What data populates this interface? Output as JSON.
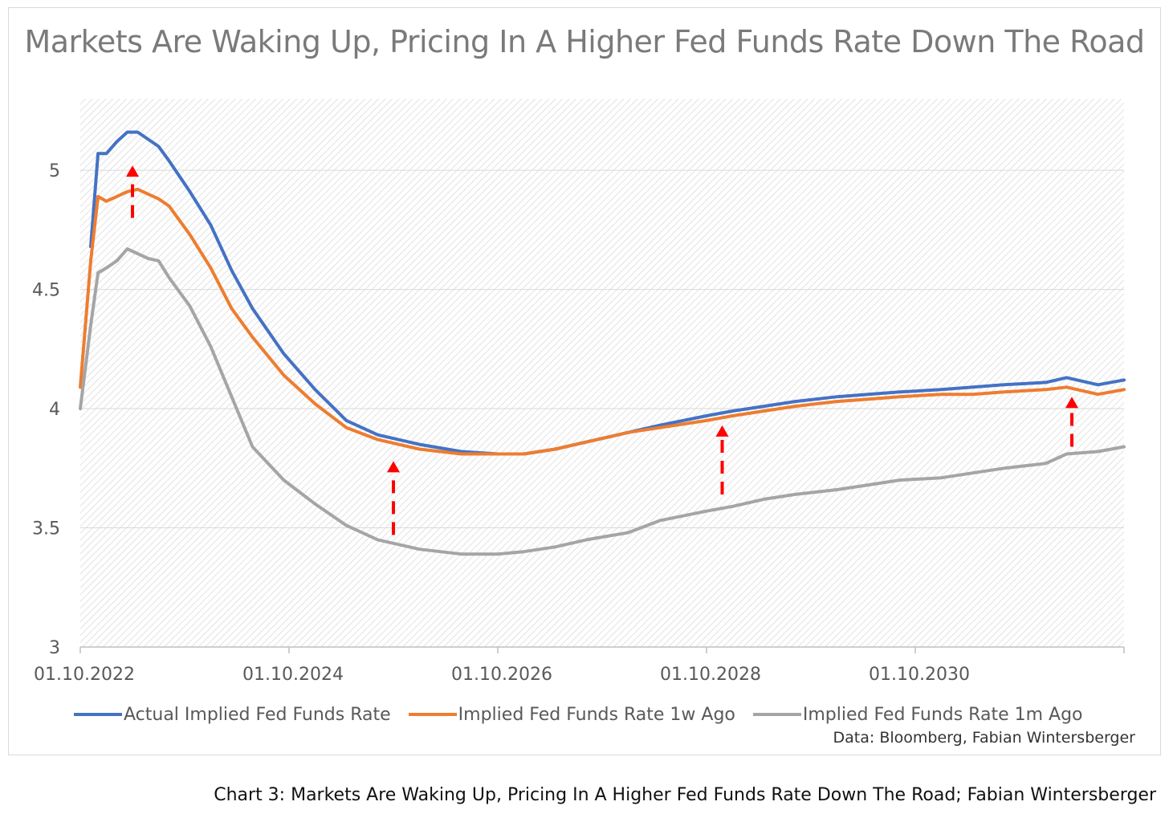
{
  "chart_data": {
    "type": "line",
    "title": "Markets Are Waking Up, Pricing In A Higher Fed Funds Rate Down The Road",
    "xlabel": "",
    "ylabel": "",
    "ylim": [
      3,
      5.3
    ],
    "yticks": [
      3,
      3.5,
      4,
      4.5,
      5
    ],
    "ytick_labels": [
      "3",
      "3.5",
      "4",
      "4.5",
      "5"
    ],
    "xtick_labels": [
      "01.10.2022",
      "01.10.2024",
      "01.10.2026",
      "01.10.2028",
      "01.10.2030"
    ],
    "xticks": [
      2022.75,
      2024.75,
      2026.75,
      2028.75,
      2030.75
    ],
    "xlim": [
      2022.75,
      2032.75
    ],
    "grid": true,
    "legend_position": "bottom",
    "series": [
      {
        "name": "Actual Implied Fed Funds Rate",
        "color": "#4472C4",
        "x": [
          2022.85,
          2022.92,
          2023.0,
          2023.1,
          2023.2,
          2023.3,
          2023.4,
          2023.5,
          2023.6,
          2023.8,
          2024.0,
          2024.2,
          2024.4,
          2024.7,
          2025.0,
          2025.3,
          2025.6,
          2026.0,
          2026.4,
          2026.75,
          2027.0,
          2027.3,
          2027.6,
          2028.0,
          2028.3,
          2028.75,
          2029.0,
          2029.3,
          2029.6,
          2030.0,
          2030.3,
          2030.6,
          2031.0,
          2031.3,
          2031.6,
          2032.0,
          2032.2,
          2032.5,
          2032.75
        ],
        "values": [
          4.68,
          5.07,
          5.07,
          5.12,
          5.16,
          5.16,
          5.13,
          5.1,
          5.04,
          4.91,
          4.77,
          4.58,
          4.42,
          4.23,
          4.08,
          3.95,
          3.89,
          3.85,
          3.82,
          3.81,
          3.81,
          3.83,
          3.86,
          3.9,
          3.93,
          3.97,
          3.99,
          4.01,
          4.03,
          4.05,
          4.06,
          4.07,
          4.08,
          4.09,
          4.1,
          4.11,
          4.13,
          4.1,
          4.12
        ]
      },
      {
        "name": "Implied Fed Funds Rate 1w Ago",
        "color": "#ED7D31",
        "x": [
          2022.75,
          2022.85,
          2022.92,
          2023.0,
          2023.1,
          2023.2,
          2023.3,
          2023.4,
          2023.5,
          2023.6,
          2023.8,
          2024.0,
          2024.2,
          2024.4,
          2024.7,
          2025.0,
          2025.3,
          2025.6,
          2026.0,
          2026.4,
          2026.75,
          2027.0,
          2027.3,
          2027.6,
          2028.0,
          2028.3,
          2028.75,
          2029.0,
          2029.3,
          2029.6,
          2030.0,
          2030.3,
          2030.6,
          2031.0,
          2031.3,
          2031.6,
          2032.0,
          2032.2,
          2032.5,
          2032.75
        ],
        "values": [
          4.09,
          4.62,
          4.89,
          4.87,
          4.89,
          4.91,
          4.92,
          4.9,
          4.88,
          4.85,
          4.73,
          4.59,
          4.42,
          4.3,
          4.14,
          4.02,
          3.92,
          3.87,
          3.83,
          3.81,
          3.81,
          3.81,
          3.83,
          3.86,
          3.9,
          3.92,
          3.95,
          3.97,
          3.99,
          4.01,
          4.03,
          4.04,
          4.05,
          4.06,
          4.06,
          4.07,
          4.08,
          4.09,
          4.06,
          4.08
        ]
      },
      {
        "name": "Implied Fed Funds Rate 1m Ago",
        "color": "#A5A5A5",
        "x": [
          2022.75,
          2022.85,
          2022.92,
          2023.0,
          2023.1,
          2023.2,
          2023.3,
          2023.4,
          2023.5,
          2023.6,
          2023.8,
          2024.0,
          2024.2,
          2024.4,
          2024.7,
          2025.0,
          2025.3,
          2025.6,
          2026.0,
          2026.4,
          2026.75,
          2027.0,
          2027.3,
          2027.6,
          2028.0,
          2028.3,
          2028.75,
          2029.0,
          2029.3,
          2029.6,
          2030.0,
          2030.3,
          2030.6,
          2031.0,
          2031.3,
          2031.6,
          2032.0,
          2032.2,
          2032.5,
          2032.75
        ],
        "values": [
          4.0,
          4.35,
          4.57,
          4.59,
          4.62,
          4.67,
          4.65,
          4.63,
          4.62,
          4.55,
          4.43,
          4.26,
          4.05,
          3.84,
          3.7,
          3.6,
          3.51,
          3.45,
          3.41,
          3.39,
          3.39,
          3.4,
          3.42,
          3.45,
          3.48,
          3.53,
          3.57,
          3.59,
          3.62,
          3.64,
          3.66,
          3.68,
          3.7,
          3.71,
          3.73,
          3.75,
          3.77,
          3.81,
          3.82,
          3.84
        ]
      }
    ],
    "annotations": [
      {
        "type": "arrow",
        "x": 2023.25,
        "from": 4.8,
        "to": 5.02,
        "color": "#FF0000"
      },
      {
        "type": "arrow",
        "x": 2025.75,
        "from": 3.47,
        "to": 3.78,
        "color": "#FF0000"
      },
      {
        "type": "arrow",
        "x": 2028.9,
        "from": 3.64,
        "to": 3.93,
        "color": "#FF0000"
      },
      {
        "type": "arrow",
        "x": 2032.25,
        "from": 3.84,
        "to": 4.05,
        "color": "#FF0000"
      }
    ],
    "source": "Data: Bloomberg, Fabian Wintersberger"
  },
  "caption": "Chart 3: Markets Are Waking Up, Pricing In A Higher Fed Funds Rate Down The Road; Fabian Wintersberger"
}
